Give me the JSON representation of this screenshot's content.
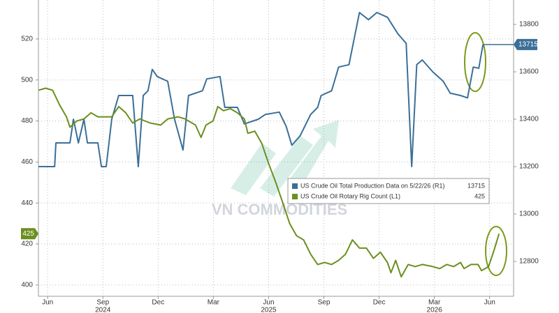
{
  "chart_data": {
    "type": "line",
    "watermark": "VN COMMODITIES",
    "xlim": [
      -0.5,
      25.3
    ],
    "xticks": [
      {
        "value": 0,
        "label": "Jun"
      },
      {
        "value": 3,
        "label": "Sep"
      },
      {
        "value": 6,
        "label": "Dec"
      },
      {
        "value": 9,
        "label": "Mar"
      },
      {
        "value": 12,
        "label": "Jun"
      },
      {
        "value": 15,
        "label": "Sep"
      },
      {
        "value": 18,
        "label": "Dec"
      },
      {
        "value": 21,
        "label": "Mar"
      },
      {
        "value": 24,
        "label": "Jun"
      }
    ],
    "x_year_labels": [
      {
        "value": 3,
        "label": "2024"
      },
      {
        "value": 12,
        "label": "2025"
      },
      {
        "value": 21,
        "label": "2026"
      }
    ],
    "ylim": [
      394.5,
      539
    ],
    "yticks": [
      400,
      420,
      440,
      460,
      480,
      500,
      520
    ],
    "y2lim": [
      12653,
      13903
    ],
    "y2ticks": [
      12800,
      13000,
      13200,
      13400,
      13600,
      13800
    ],
    "grid": true,
    "series": [
      {
        "name": "US Crude Oil Total Production Data on 5/22/26 (R1)",
        "color": "#3b6f98",
        "axis": "y2",
        "x": [
          -0.49,
          0.38,
          0.45,
          1.21,
          1.4,
          1.67,
          1.97,
          2.16,
          2.73,
          2.92,
          3.18,
          3.48,
          3.86,
          4.62,
          4.92,
          5.19,
          5.45,
          5.68,
          5.95,
          6.52,
          6.89,
          7.35,
          7.65,
          8.41,
          8.64,
          9.36,
          9.62,
          10.3,
          10.68,
          11.44,
          11.82,
          12.58,
          12.95,
          13.26,
          13.71,
          14.28,
          14.66,
          14.85,
          15.42,
          15.8,
          16.36,
          16.93,
          17.42,
          17.88,
          18.45,
          19.02,
          19.47,
          19.77,
          20.04,
          20.34,
          20.91,
          21.48,
          21.86,
          22.42,
          22.8,
          23.11,
          23.41,
          23.64
        ],
        "values": [
          13200,
          13200,
          13300,
          13300,
          13400,
          13300,
          13400,
          13300,
          13300,
          13200,
          13200,
          13400,
          13500,
          13500,
          13200,
          13500,
          13520,
          13610,
          13580,
          13560,
          13400,
          13270,
          13500,
          13520,
          13570,
          13580,
          13450,
          13450,
          13380,
          13400,
          13420,
          13430,
          13370,
          13290,
          13330,
          13420,
          13450,
          13500,
          13520,
          13620,
          13630,
          13850,
          13820,
          13850,
          13830,
          13760,
          13720,
          13200,
          13630,
          13650,
          13600,
          13560,
          13510,
          13500,
          13490,
          13620,
          13615,
          13715
        ]
      },
      {
        "name": "US Crude Oil Rotary Rig Count (L1)",
        "color": "#6b8f1f",
        "axis": "y",
        "x": [
          -0.49,
          -0.11,
          0.27,
          0.64,
          1.02,
          1.21,
          1.59,
          1.97,
          2.35,
          2.73,
          3.48,
          3.86,
          4.24,
          4.62,
          5.0,
          5.57,
          6.14,
          6.52,
          7.08,
          7.46,
          8.03,
          8.33,
          8.6,
          8.98,
          9.24,
          9.55,
          9.92,
          10.3,
          10.68,
          10.87,
          11.25,
          11.63,
          12.01,
          12.39,
          12.77,
          13.14,
          13.52,
          13.9,
          14.28,
          14.66,
          15.04,
          15.42,
          15.8,
          16.17,
          16.55,
          16.93,
          17.31,
          17.69,
          18.07,
          18.45,
          18.64,
          18.9,
          19.2,
          19.58,
          19.96,
          20.34,
          20.91,
          21.29,
          21.67,
          22.05,
          22.42,
          22.61,
          22.99,
          23.37,
          23.56,
          23.94,
          24.24,
          24.51
        ],
        "values": [
          495,
          496,
          495,
          488,
          482,
          477,
          480,
          481,
          484,
          482,
          482,
          487,
          484,
          479,
          481,
          479,
          478,
          481,
          482,
          481,
          478,
          472,
          478,
          480,
          487,
          485,
          486,
          484,
          481,
          474,
          475,
          469,
          459,
          450,
          440,
          430,
          424,
          422,
          415,
          410,
          411,
          410,
          412,
          415,
          422,
          418,
          418,
          413,
          416,
          411,
          406,
          412,
          404,
          410,
          409,
          410,
          409,
          408,
          410,
          409,
          411,
          408,
          410,
          410,
          407,
          409,
          417,
          425
        ]
      }
    ]
  }
}
